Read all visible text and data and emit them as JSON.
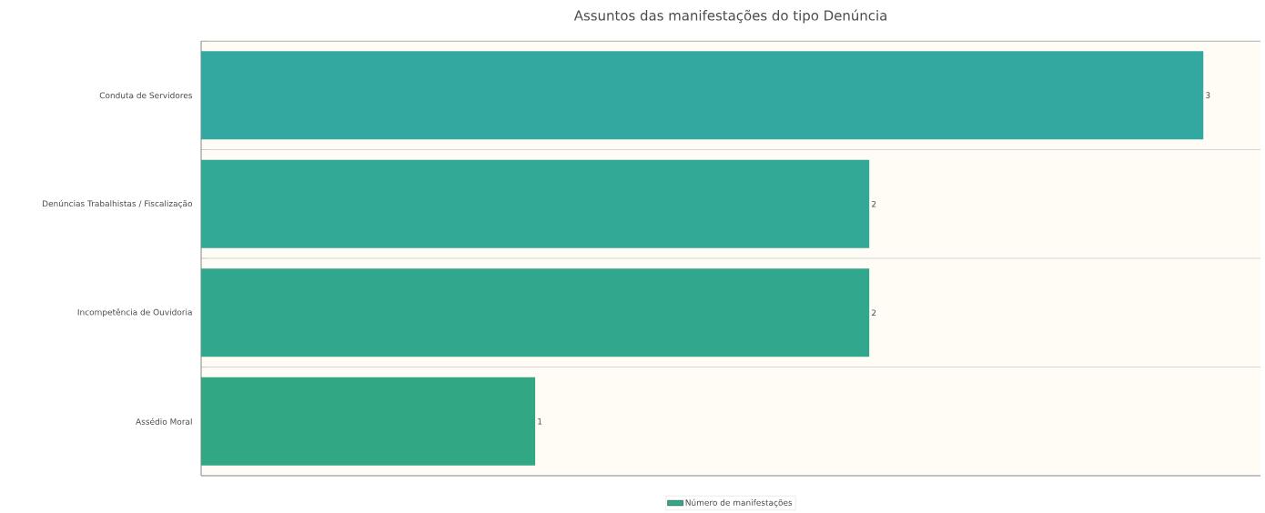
{
  "chart_data": {
    "type": "bar",
    "orientation": "horizontal",
    "title": "Assuntos das manifestações do tipo Denúncia",
    "categories": [
      "Conduta de Servidores",
      "Denúncias Trabalhistas / Fiscalização",
      "Incompetência de Ouvidoria",
      "Assédio Moral"
    ],
    "series": [
      {
        "name": "Número de manifestações",
        "color": "#31a88a",
        "colors": [
          "#33a8a0",
          "#32a897",
          "#31a88d",
          "#31a883"
        ],
        "values": [
          3,
          2,
          2,
          1
        ]
      }
    ],
    "data_labels": true,
    "grid": "y",
    "legend": "bottom",
    "tick_labels": "y"
  }
}
